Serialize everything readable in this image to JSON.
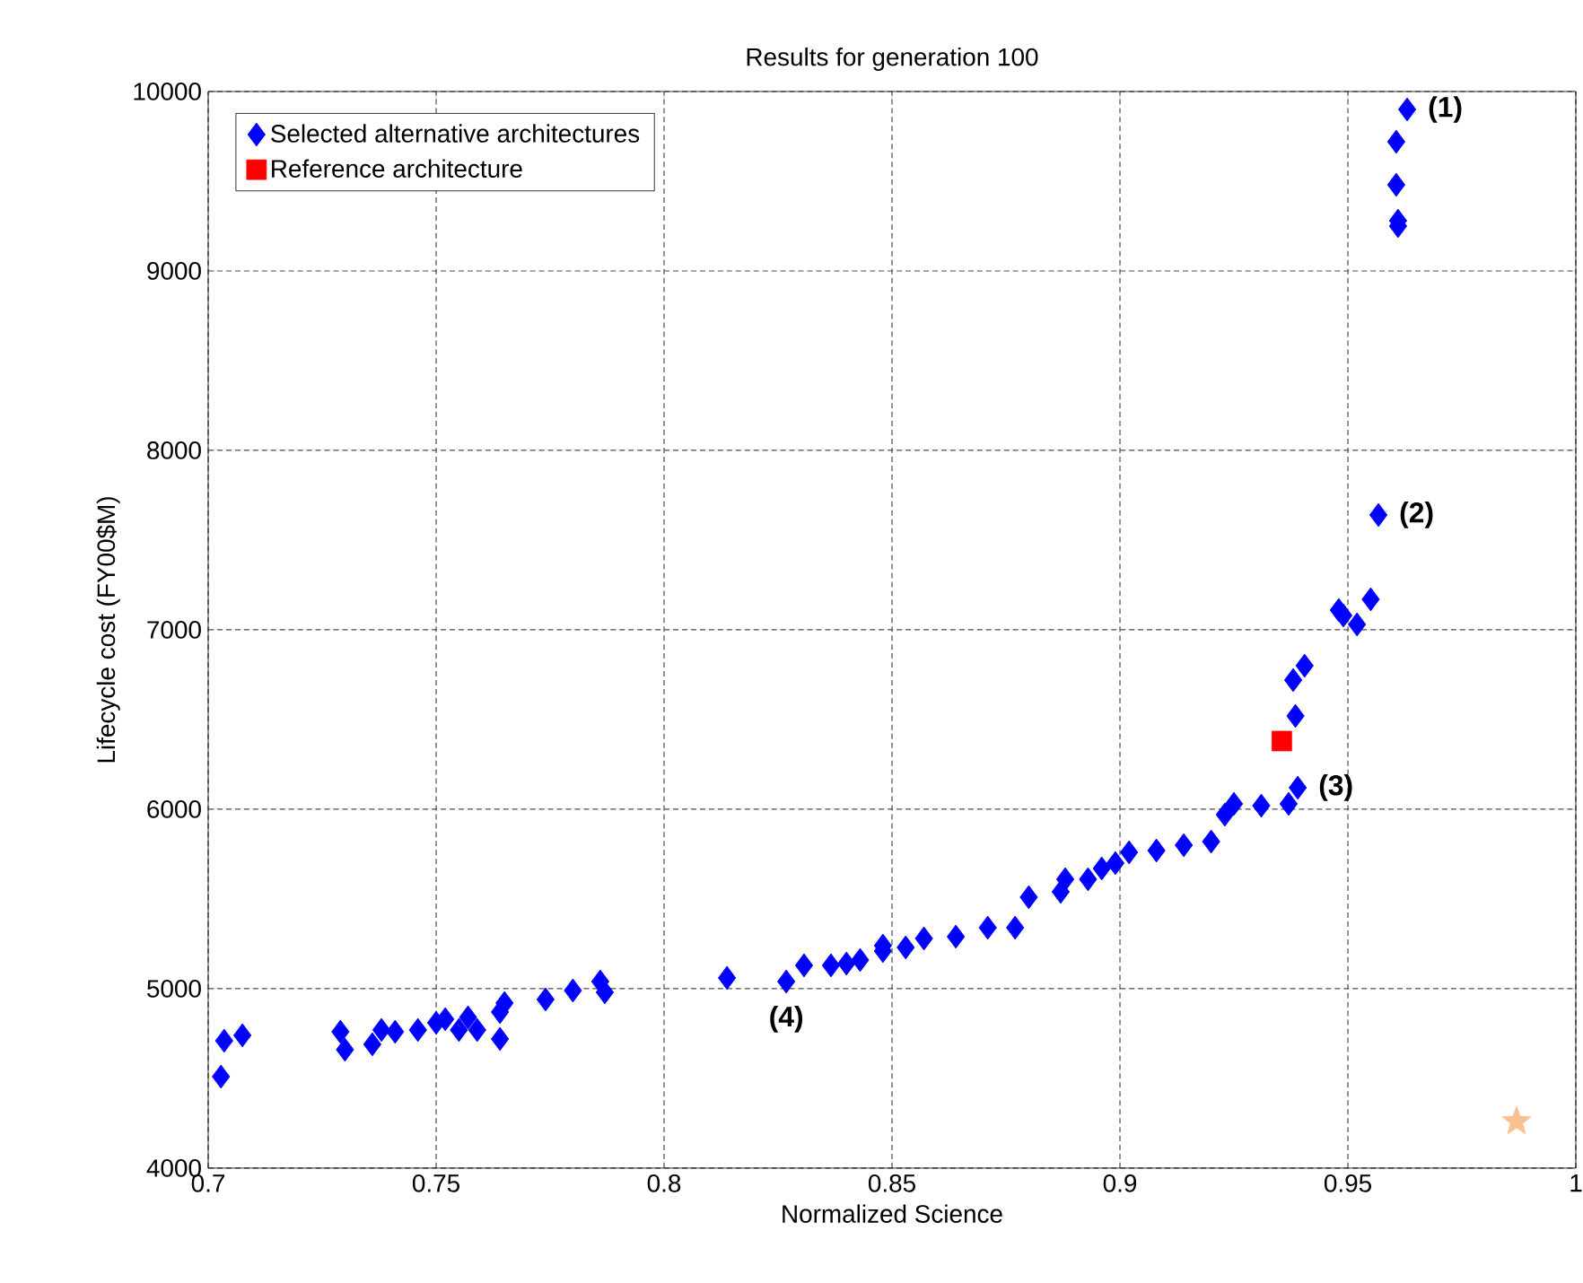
{
  "chart_data": {
    "type": "scatter",
    "title": "Results for generation 100",
    "xlabel": "Normalized Science",
    "ylabel": "Lifecycle cost (FY00$M)",
    "xlim": [
      0.7,
      1
    ],
    "ylim": [
      4000,
      10000
    ],
    "xticks": [
      {
        "value": 0.7,
        "label": "0.7"
      },
      {
        "value": 0.75,
        "label": "0.75"
      },
      {
        "value": 0.8,
        "label": "0.8"
      },
      {
        "value": 0.85,
        "label": "0.85"
      },
      {
        "value": 0.9,
        "label": "0.9"
      },
      {
        "value": 0.95,
        "label": "0.95"
      },
      {
        "value": 1,
        "label": "1"
      }
    ],
    "yticks": [
      4000,
      5000,
      6000,
      7000,
      8000,
      9000,
      10000
    ],
    "grid": true,
    "legend": "top left",
    "series": [
      {
        "name": "Selected alternative architectures",
        "color": "#0000ff",
        "marker": "diamond",
        "x": [
          0.7028,
          0.7035,
          0.7075,
          0.729,
          0.73,
          0.736,
          0.738,
          0.741,
          0.746,
          0.75,
          0.752,
          0.755,
          0.757,
          0.759,
          0.764,
          0.765,
          0.764,
          0.774,
          0.78,
          0.786,
          0.787,
          0.8138,
          0.8268,
          0.8307,
          0.8366,
          0.84,
          0.843,
          0.848,
          0.848,
          0.853,
          0.857,
          0.864,
          0.871,
          0.877,
          0.88,
          0.887,
          0.888,
          0.893,
          0.896,
          0.899,
          0.902,
          0.908,
          0.914,
          0.92,
          0.923,
          0.925,
          0.931,
          0.937,
          0.939,
          0.9385,
          0.938,
          0.9405,
          0.948,
          0.949,
          0.952,
          0.955,
          0.9567,
          0.961,
          0.961,
          0.9606,
          0.9606,
          0.963
        ],
        "values": [
          4510,
          4710,
          4740,
          4760,
          4660,
          4690,
          4770,
          4760,
          4770,
          4810,
          4830,
          4770,
          4840,
          4770,
          4720,
          4920,
          4870,
          4940,
          4990,
          5040,
          4980,
          5060,
          5040,
          5130,
          5130,
          5140,
          5160,
          5210,
          5240,
          5230,
          5280,
          5290,
          5340,
          5340,
          5510,
          5540,
          5610,
          5610,
          5670,
          5700,
          5760,
          5770,
          5800,
          5820,
          5970,
          6030,
          6020,
          6030,
          6120,
          6520,
          6720,
          6800,
          7110,
          7080,
          7030,
          7170,
          7640,
          9250,
          9280,
          9480,
          9720,
          9900
        ]
      },
      {
        "name": "Reference architecture",
        "color": "#ff0000",
        "marker": "square",
        "x": [
          0.9355
        ],
        "values": [
          6380
        ]
      },
      {
        "color": "#fbc08f",
        "marker": "star",
        "x": [
          0.987
        ],
        "values": [
          4260
        ]
      }
    ],
    "annotations": [
      {
        "text": "**(1)**",
        "x": 0.963,
        "y": 9900
      },
      {
        "text": "**(2)**",
        "x": 0.9567,
        "y": 7640
      },
      {
        "text": "**(3)**",
        "x": 0.939,
        "y": 6120
      },
      {
        "text": "**(4)**",
        "x": 0.8268,
        "y": 5040
      }
    ]
  }
}
